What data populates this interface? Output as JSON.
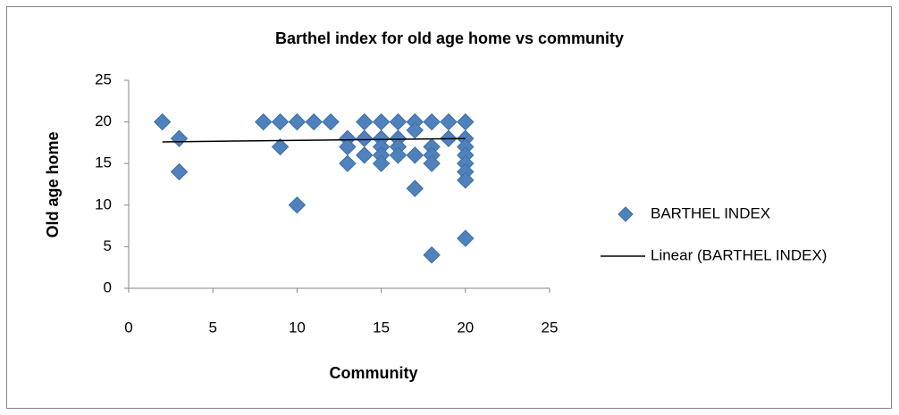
{
  "chart_data": {
    "type": "scatter",
    "title": "Barthel index for old age home vs community",
    "x_label": "Community",
    "y_label": "Old age home",
    "xlim": [
      0,
      25
    ],
    "xticks": [
      0,
      5,
      10,
      15,
      20,
      25
    ],
    "ylim": [
      0,
      25
    ],
    "yticks": [
      0,
      5,
      10,
      15,
      20,
      25
    ],
    "grid": false,
    "legend": "right",
    "series": [
      {
        "name": "BARTHEL INDEX",
        "color": "#4f81bd",
        "marker": "diamond",
        "x": [
          2,
          3,
          3,
          8,
          9,
          9,
          10,
          10,
          11,
          12,
          13,
          13,
          13,
          14,
          14,
          14,
          15,
          15,
          15,
          15,
          15,
          16,
          16,
          16,
          16,
          17,
          17,
          17,
          17,
          18,
          18,
          18,
          18,
          18,
          19,
          19,
          20,
          20,
          20,
          20,
          20,
          20,
          20,
          20
        ],
        "values": [
          20,
          18,
          14,
          20,
          20,
          17,
          20,
          10,
          20,
          20,
          18,
          17,
          15,
          20,
          18,
          16,
          20,
          18,
          17,
          16,
          15,
          20,
          18,
          17,
          16,
          20,
          19,
          16,
          12,
          20,
          17,
          16,
          15,
          4,
          20,
          18,
          20,
          18,
          17,
          16,
          15,
          14,
          13,
          6
        ]
      }
    ],
    "trendline": {
      "name": "Linear (BARTHEL INDEX)",
      "color": "#000000",
      "x": [
        2,
        20
      ],
      "values": [
        17.6,
        18.0
      ]
    }
  }
}
